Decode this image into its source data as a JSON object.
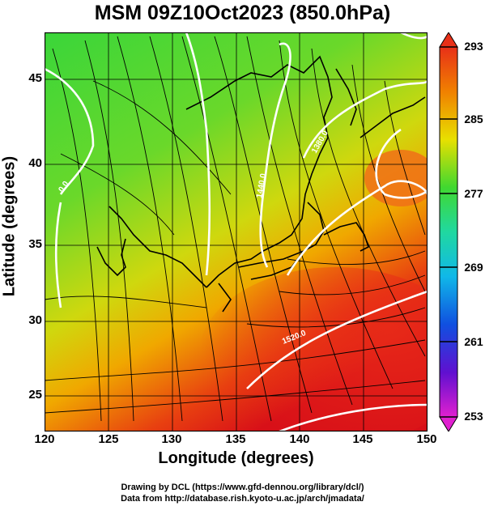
{
  "title": "MSM 09Z10Oct2023 (850.0hPa)",
  "x_axis": {
    "label": "Longitude (degrees)",
    "ticks": [
      "120",
      "125",
      "130",
      "135",
      "140",
      "145",
      "150"
    ]
  },
  "y_axis": {
    "label": "Latitude  (degrees)",
    "ticks": [
      "25",
      "30",
      "35",
      "40",
      "45"
    ]
  },
  "colorbar": {
    "ticks": [
      "293",
      "285",
      "277",
      "269",
      "261",
      "253"
    ]
  },
  "contour_labels": [
    "1380.0",
    "1440.0",
    "1520.0",
    "0.0"
  ],
  "credits": {
    "line1": "Drawing by DCL (https://www.gfd-dennou.org/library/dcl/)",
    "line2": "Data from http://database.rish.kyoto-u.ac.jp/arch/jmadata/"
  },
  "colors": {
    "cold": "#2ddc2d",
    "mid": "#f0dc00",
    "warm": "#e01010",
    "contour": "#ffffff"
  }
}
